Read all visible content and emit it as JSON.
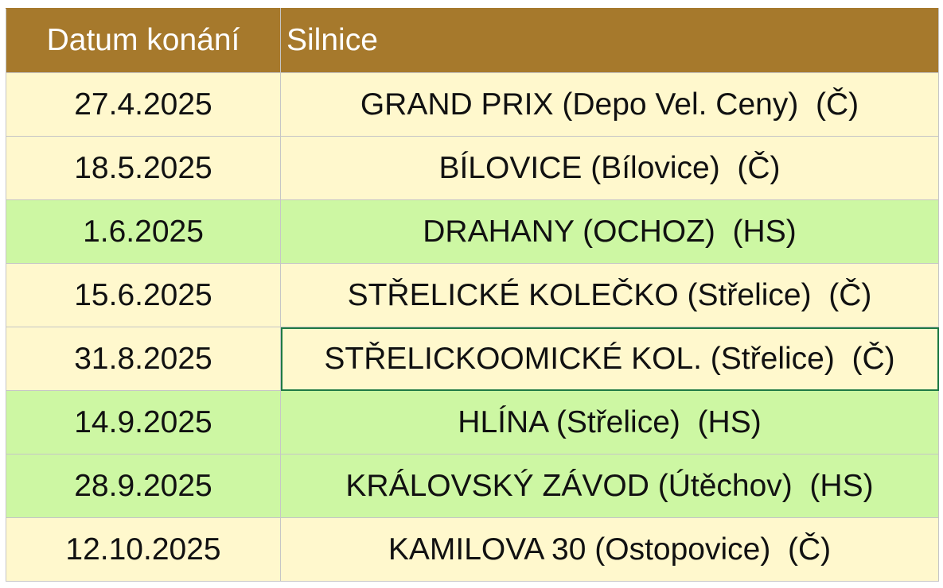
{
  "table": {
    "header": [
      "Datum konání",
      "Silnice"
    ],
    "rows": [
      [
        "27.4.2025",
        "GRAND PRIX (Depo Vel. Ceny)  (Č)"
      ],
      [
        "18.5.2025",
        "BÍLOVICE (Bílovice)  (Č)"
      ],
      [
        "1.6.2025",
        "DRAHANY (OCHOZ)  (HS)"
      ],
      [
        "15.6.2025",
        "STŘELICKÉ KOLEČKO (Střelice)  (Č)"
      ],
      [
        "31.8.2025",
        "STŘELICKOOMICKÉ KOL. (Střelice)  (Č)"
      ],
      [
        "14.9.2025",
        "HLÍNA (Střelice)  (HS)"
      ],
      [
        "28.9.2025",
        "KRÁLOVSKÝ ZÁVOD (Útěchov)  (HS)"
      ],
      [
        "12.10.2025",
        "KAMILOVA 30 (Ostopovice)  (Č)"
      ]
    ]
  }
}
